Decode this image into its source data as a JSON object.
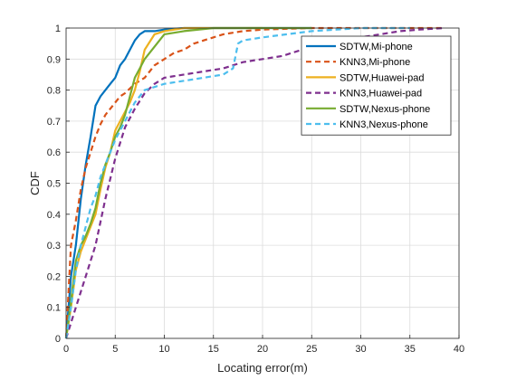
{
  "chart_data": {
    "type": "line",
    "title": "",
    "xlabel": "Locating error(m)",
    "ylabel": "CDF",
    "xlim": [
      0,
      40
    ],
    "ylim": [
      0,
      1
    ],
    "xticks": [
      "0",
      "5",
      "10",
      "15",
      "20",
      "25",
      "30",
      "35",
      "40"
    ],
    "yticks": [
      "0",
      "0.1",
      "0.2",
      "0.3",
      "0.4",
      "0.5",
      "0.6",
      "0.7",
      "0.8",
      "0.9",
      "1"
    ],
    "grid": true,
    "legend_position": "top-right",
    "series": [
      {
        "name": "SDTW,Mi-phone",
        "color": "#0072BD",
        "dash": "solid",
        "x": [
          0,
          0.5,
          1.0,
          1.5,
          2.0,
          2.5,
          3.0,
          3.5,
          4.0,
          4.5,
          5.0,
          5.5,
          6.0,
          6.5,
          7.0,
          7.5,
          8.0,
          9.0,
          10.0,
          12.0,
          15.0,
          20.0,
          25.0
        ],
        "y": [
          0,
          0.2,
          0.3,
          0.45,
          0.56,
          0.65,
          0.75,
          0.78,
          0.8,
          0.82,
          0.84,
          0.88,
          0.9,
          0.93,
          0.96,
          0.98,
          0.99,
          0.99,
          0.995,
          1.0,
          1.0,
          1.0,
          1.0
        ]
      },
      {
        "name": "KNN3,Mi-phone",
        "color": "#D95319",
        "dash": "dashed",
        "x": [
          0,
          0.5,
          1.0,
          1.5,
          2.0,
          2.5,
          3.0,
          3.5,
          4.0,
          4.5,
          5.0,
          5.5,
          6.0,
          7.0,
          8.0,
          9.0,
          10.0,
          11.0,
          12.0,
          13.0,
          14.0,
          15.0,
          16.0,
          18.0,
          20.0,
          25.0,
          30.0,
          35.0,
          38.5
        ],
        "y": [
          0,
          0.3,
          0.38,
          0.48,
          0.55,
          0.6,
          0.65,
          0.69,
          0.72,
          0.74,
          0.76,
          0.78,
          0.79,
          0.82,
          0.84,
          0.88,
          0.9,
          0.92,
          0.93,
          0.95,
          0.96,
          0.97,
          0.98,
          0.99,
          0.995,
          1.0,
          1.0,
          1.0,
          1.0
        ]
      },
      {
        "name": "SDTW,Huawei-pad",
        "color": "#EDB120",
        "dash": "solid",
        "x": [
          0,
          0.5,
          1.0,
          1.5,
          2.0,
          2.5,
          3.0,
          3.5,
          4.0,
          4.5,
          5.0,
          5.5,
          6.0,
          6.5,
          7.0,
          7.5,
          8.0,
          9.0,
          10.0,
          12.0,
          15.0,
          20.0
        ],
        "y": [
          0,
          0.1,
          0.22,
          0.28,
          0.32,
          0.36,
          0.4,
          0.48,
          0.55,
          0.6,
          0.67,
          0.7,
          0.73,
          0.76,
          0.8,
          0.86,
          0.93,
          0.98,
          0.99,
          1.0,
          1.0,
          1.0
        ]
      },
      {
        "name": "KNN3,Huawei-pad",
        "color": "#7E2F8E",
        "dash": "dashed",
        "x": [
          0,
          1.0,
          2.0,
          3.0,
          4.0,
          5.0,
          6.0,
          7.0,
          8.0,
          9.0,
          10.0,
          12.0,
          14.0,
          16.0,
          18.0,
          20.0,
          22.0,
          24.0,
          26.0,
          28.0,
          30.0,
          32.0,
          34.0,
          36.0,
          38.5
        ],
        "y": [
          0,
          0.1,
          0.2,
          0.3,
          0.45,
          0.58,
          0.68,
          0.74,
          0.79,
          0.82,
          0.84,
          0.85,
          0.86,
          0.87,
          0.89,
          0.9,
          0.91,
          0.93,
          0.95,
          0.96,
          0.97,
          0.98,
          0.99,
          0.995,
          1.0
        ]
      },
      {
        "name": "SDTW,Nexus-phone",
        "color": "#77AC30",
        "dash": "solid",
        "x": [
          0,
          0.5,
          1.0,
          1.5,
          2.0,
          2.5,
          3.0,
          3.5,
          4.0,
          4.5,
          5.0,
          5.5,
          6.0,
          6.5,
          7.0,
          7.5,
          8.0,
          9.0,
          10.0,
          12.0,
          15.0,
          20.0,
          25.0
        ],
        "y": [
          0,
          0.12,
          0.25,
          0.3,
          0.33,
          0.37,
          0.42,
          0.5,
          0.56,
          0.6,
          0.65,
          0.68,
          0.72,
          0.78,
          0.84,
          0.87,
          0.9,
          0.94,
          0.98,
          0.99,
          1.0,
          1.0,
          1.0
        ]
      },
      {
        "name": "KNN3,Nexus-phone",
        "color": "#4DBEEE",
        "dash": "dashed",
        "x": [
          0,
          0.5,
          1.0,
          1.5,
          2.0,
          2.5,
          3.0,
          3.5,
          4.0,
          4.5,
          5.0,
          6.0,
          7.0,
          8.0,
          10.0,
          12.0,
          14.0,
          16.0,
          17.0,
          17.5,
          18.0,
          20.0,
          25.0,
          30.0,
          35.0
        ],
        "y": [
          0,
          0.1,
          0.22,
          0.3,
          0.36,
          0.42,
          0.46,
          0.52,
          0.56,
          0.6,
          0.64,
          0.7,
          0.76,
          0.8,
          0.82,
          0.83,
          0.84,
          0.85,
          0.87,
          0.95,
          0.96,
          0.97,
          0.99,
          1.0,
          1.0
        ]
      }
    ]
  }
}
